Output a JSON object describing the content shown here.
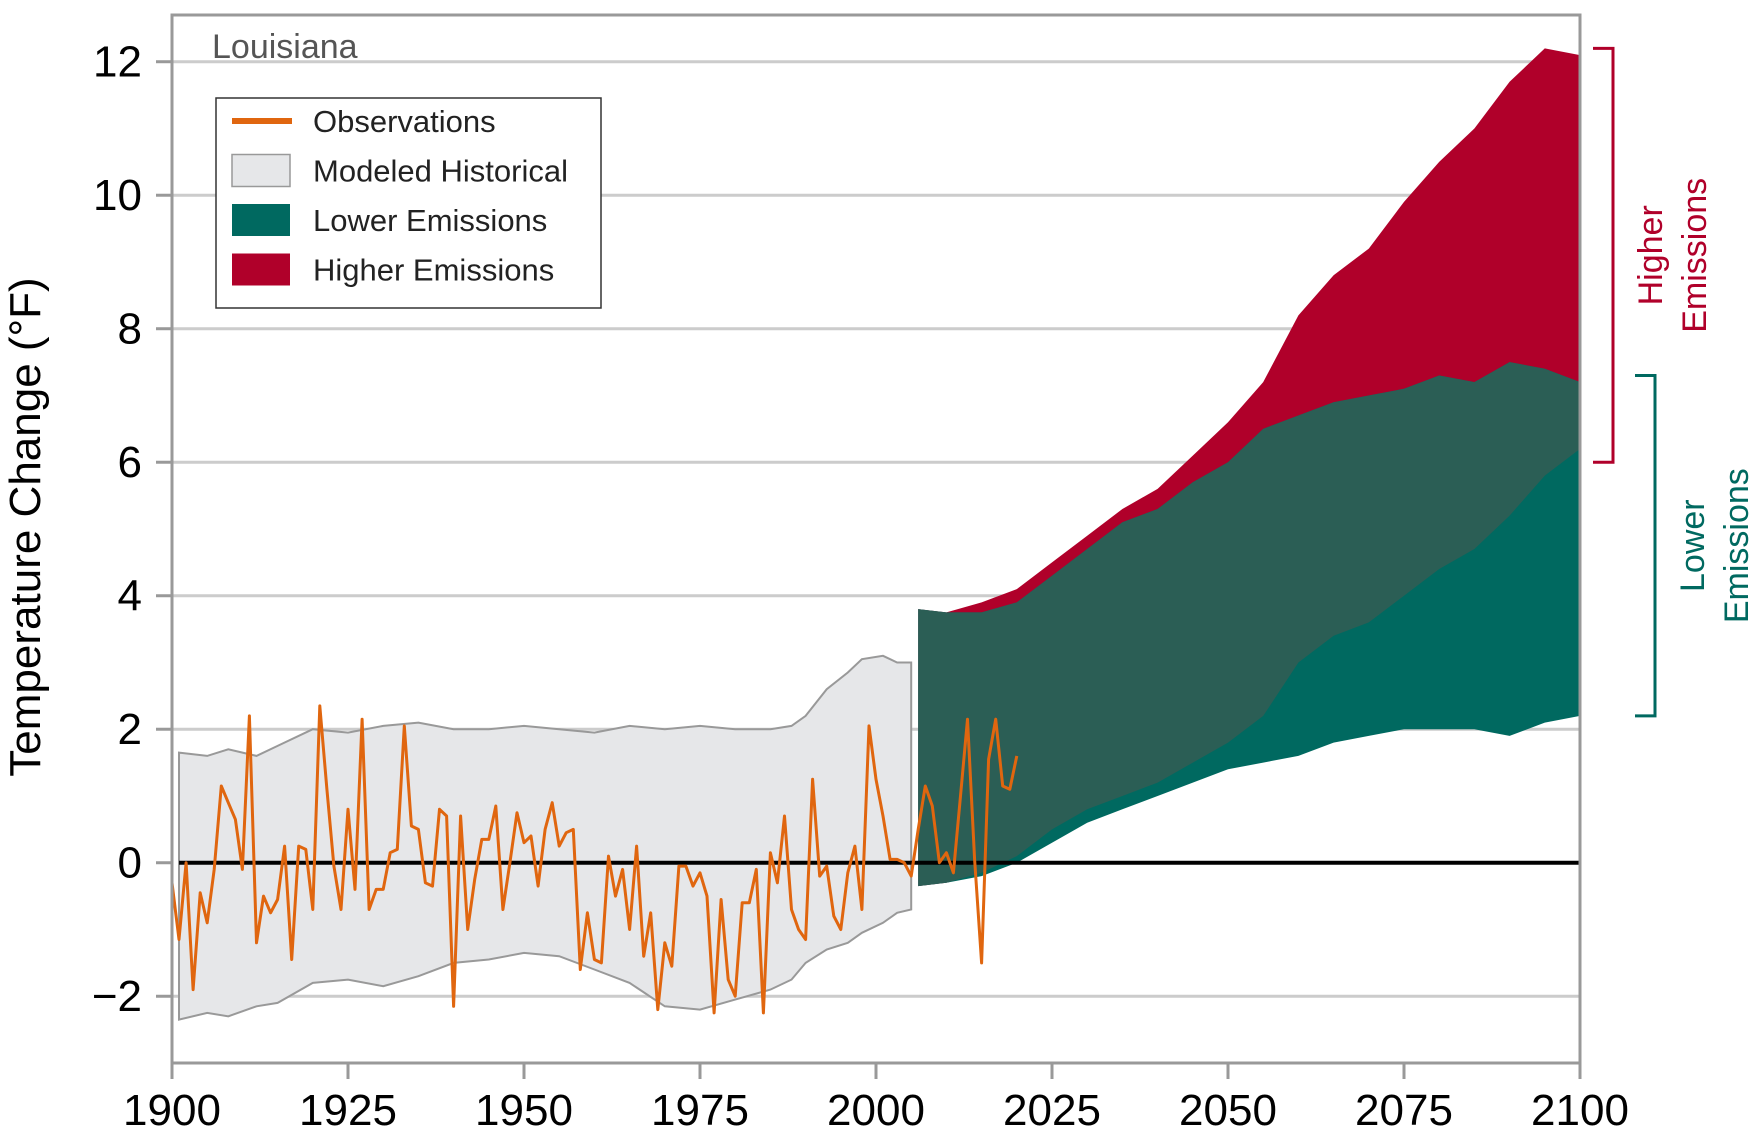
{
  "chart_data": {
    "type": "area",
    "region_label": "Louisiana",
    "ylabel": "Temperature Change (°F)",
    "xlabel": "",
    "xlim": [
      1900,
      2100
    ],
    "ylim": [
      -3,
      12.7
    ],
    "x_ticks": [
      1900,
      1925,
      1950,
      1975,
      2000,
      2025,
      2050,
      2075,
      2100
    ],
    "y_ticks": [
      {
        "value": -2,
        "label": "−2"
      },
      {
        "value": 0,
        "label": "0"
      },
      {
        "value": 2,
        "label": "2"
      },
      {
        "value": 4,
        "label": "4"
      },
      {
        "value": 6,
        "label": "6"
      },
      {
        "value": 8,
        "label": "8"
      },
      {
        "value": 10,
        "label": "10"
      },
      {
        "value": 12,
        "label": "12"
      }
    ],
    "grid": true,
    "legend_position": "top-left",
    "legend": [
      {
        "key": "observations",
        "label": "Observations",
        "kind": "line",
        "color": "#E0660F"
      },
      {
        "key": "modeled",
        "label": "Modeled Historical",
        "kind": "box",
        "color": "#E6E7E9",
        "stroke": "#999999"
      },
      {
        "key": "lower",
        "label": "Lower Emissions",
        "kind": "box",
        "color": "#006960"
      },
      {
        "key": "higher",
        "label": "Higher Emissions",
        "kind": "box",
        "color": "#B0002A"
      }
    ],
    "brackets": [
      {
        "key": "higher",
        "label_lines": [
          "Higher",
          "Emissions"
        ],
        "range": [
          6.0,
          12.2
        ],
        "color": "#B0002A"
      },
      {
        "key": "lower",
        "label_lines": [
          "Lower",
          "Emissions"
        ],
        "range": [
          2.2,
          7.3
        ],
        "color": "#006960"
      }
    ],
    "colors": {
      "observations": "#E0660F",
      "modeled_fill": "#E6E7E9",
      "modeled_stroke": "#999999",
      "lower": "#006960",
      "higher": "#B0002A",
      "overlap": "#2B5E55",
      "zero_line": "#000000",
      "grid": "#cccccc",
      "frame": "#999999"
    },
    "series": [
      {
        "key": "modeled_historical",
        "x": [
          1901,
          1905,
          1908,
          1912,
          1915,
          1920,
          1925,
          1930,
          1935,
          1940,
          1945,
          1950,
          1955,
          1960,
          1965,
          1970,
          1975,
          1980,
          1985,
          1988,
          1990,
          1993,
          1996,
          1998,
          2001,
          2003,
          2005
        ],
        "upper": [
          1.65,
          1.6,
          1.7,
          1.6,
          1.75,
          2.0,
          1.95,
          2.05,
          2.1,
          2.0,
          2.0,
          2.05,
          2.0,
          1.95,
          2.05,
          2.0,
          2.05,
          2.0,
          2.0,
          2.05,
          2.2,
          2.6,
          2.85,
          3.05,
          3.1,
          3.0,
          3.0
        ],
        "lower": [
          -2.35,
          -2.25,
          -2.3,
          -2.15,
          -2.1,
          -1.8,
          -1.75,
          -1.85,
          -1.7,
          -1.5,
          -1.45,
          -1.35,
          -1.4,
          -1.6,
          -1.8,
          -2.15,
          -2.2,
          -2.05,
          -1.9,
          -1.75,
          -1.5,
          -1.3,
          -1.2,
          -1.05,
          -0.9,
          -0.75,
          -0.7
        ]
      },
      {
        "key": "higher_emissions",
        "x": [
          2006,
          2010,
          2015,
          2020,
          2025,
          2030,
          2035,
          2040,
          2045,
          2050,
          2055,
          2060,
          2065,
          2070,
          2075,
          2080,
          2085,
          2090,
          2095,
          2100
        ],
        "upper": [
          3.8,
          3.75,
          3.9,
          4.1,
          4.5,
          4.9,
          5.3,
          5.6,
          6.1,
          6.6,
          7.2,
          8.2,
          8.8,
          9.2,
          9.9,
          10.5,
          11.0,
          11.7,
          12.2,
          12.1
        ],
        "lower": [
          -0.35,
          -0.3,
          -0.15,
          0.1,
          0.5,
          0.8,
          1.0,
          1.2,
          1.5,
          1.8,
          2.2,
          3.0,
          3.4,
          3.6,
          4.0,
          4.4,
          4.7,
          5.2,
          5.8,
          6.2
        ]
      },
      {
        "key": "lower_emissions",
        "x": [
          2006,
          2010,
          2015,
          2020,
          2025,
          2030,
          2035,
          2040,
          2045,
          2050,
          2055,
          2060,
          2065,
          2070,
          2075,
          2080,
          2085,
          2090,
          2095,
          2100
        ],
        "upper": [
          3.8,
          3.75,
          3.75,
          3.9,
          4.3,
          4.7,
          5.1,
          5.3,
          5.7,
          6.0,
          6.5,
          6.7,
          6.9,
          7.0,
          7.1,
          7.3,
          7.2,
          7.5,
          7.4,
          7.2
        ],
        "lower": [
          -0.35,
          -0.3,
          -0.2,
          0.0,
          0.3,
          0.6,
          0.8,
          1.0,
          1.2,
          1.4,
          1.5,
          1.6,
          1.8,
          1.9,
          2.0,
          2.0,
          2.0,
          1.9,
          2.1,
          2.2
        ]
      },
      {
        "key": "observations",
        "x": [
          1900,
          1901,
          1902,
          1903,
          1904,
          1905,
          1906,
          1907,
          1908,
          1909,
          1910,
          1911,
          1912,
          1913,
          1914,
          1915,
          1916,
          1917,
          1918,
          1919,
          1920,
          1921,
          1922,
          1923,
          1924,
          1925,
          1926,
          1927,
          1928,
          1929,
          1930,
          1931,
          1932,
          1933,
          1934,
          1935,
          1936,
          1937,
          1938,
          1939,
          1940,
          1941,
          1942,
          1943,
          1944,
          1945,
          1946,
          1947,
          1948,
          1949,
          1950,
          1951,
          1952,
          1953,
          1954,
          1955,
          1956,
          1957,
          1958,
          1959,
          1960,
          1961,
          1962,
          1963,
          1964,
          1965,
          1966,
          1967,
          1968,
          1969,
          1970,
          1971,
          1972,
          1973,
          1974,
          1975,
          1976,
          1977,
          1978,
          1979,
          1980,
          1981,
          1982,
          1983,
          1984,
          1985,
          1986,
          1987,
          1988,
          1989,
          1990,
          1991,
          1992,
          1993,
          1994,
          1995,
          1996,
          1997,
          1998,
          1999,
          2000,
          2001,
          2002,
          2003,
          2004,
          2005,
          2006,
          2007,
          2008,
          2009,
          2010,
          2011,
          2012,
          2013,
          2014,
          2015,
          2016,
          2017,
          2018,
          2019,
          2020
        ],
        "y": [
          -0.3,
          -1.15,
          0.0,
          -1.9,
          -0.45,
          -0.9,
          -0.1,
          1.15,
          0.9,
          0.65,
          -0.1,
          2.2,
          -1.2,
          -0.5,
          -0.75,
          -0.55,
          0.25,
          -1.45,
          0.25,
          0.2,
          -0.7,
          2.35,
          1.1,
          -0.05,
          -0.7,
          0.8,
          -0.4,
          2.15,
          -0.7,
          -0.4,
          -0.4,
          0.15,
          0.2,
          2.05,
          0.55,
          0.5,
          -0.3,
          -0.35,
          0.8,
          0.7,
          -2.15,
          0.7,
          -1.0,
          -0.25,
          0.35,
          0.35,
          0.85,
          -0.7,
          0.0,
          0.75,
          0.3,
          0.4,
          -0.35,
          0.5,
          0.9,
          0.25,
          0.45,
          0.5,
          -1.6,
          -0.75,
          -1.45,
          -1.5,
          0.1,
          -0.5,
          -0.1,
          -1.0,
          0.25,
          -1.4,
          -0.75,
          -2.2,
          -1.2,
          -1.55,
          -0.05,
          -0.05,
          -0.35,
          -0.15,
          -0.5,
          -2.25,
          -0.55,
          -1.75,
          -2.0,
          -0.6,
          -0.6,
          -0.1,
          -2.25,
          0.15,
          -0.3,
          0.7,
          -0.7,
          -1.0,
          -1.15,
          1.25,
          -0.2,
          -0.05,
          -0.8,
          -1.0,
          -0.15,
          0.25,
          -0.7,
          2.05,
          1.25,
          0.7,
          0.05,
          0.05,
          0.0,
          -0.2,
          0.5,
          1.15,
          0.85,
          0.0,
          0.15,
          -0.15,
          1.0,
          2.15,
          0.05,
          -1.5,
          1.55,
          2.15,
          1.15,
          1.1,
          1.6
        ]
      }
    ]
  }
}
